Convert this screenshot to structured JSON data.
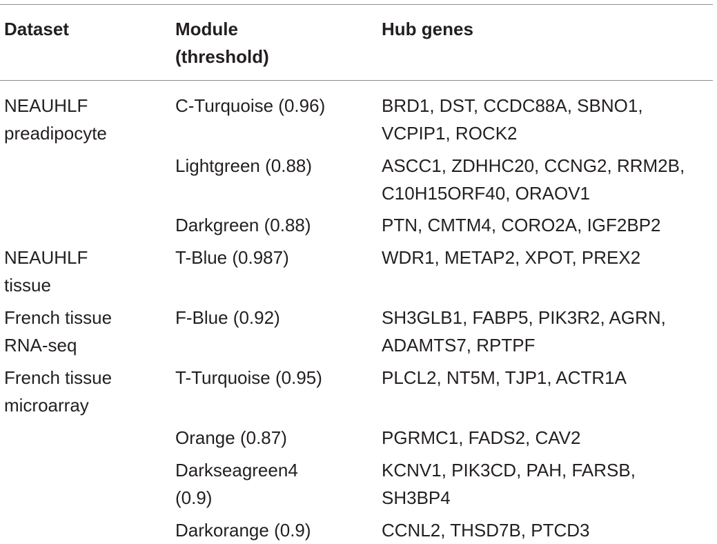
{
  "columns": {
    "dataset": "Dataset",
    "module": "Module\n(threshold)",
    "hub_genes": "Hub genes"
  },
  "rows": [
    {
      "dataset": "NEAUHLF\npreadipocyte",
      "module": "C-Turquoise (0.96)",
      "hub_genes": "BRD1, DST, CCDC88A, SBNO1,\nVCPIP1, ROCK2"
    },
    {
      "dataset": "",
      "module": "Lightgreen (0.88)",
      "hub_genes": "ASCC1, ZDHHC20, CCNG2, RRM2B,\nC10H15ORF40, ORAOV1"
    },
    {
      "dataset": "",
      "module": "Darkgreen (0.88)",
      "hub_genes": "PTN, CMTM4, CORO2A, IGF2BP2"
    },
    {
      "dataset": "NEAUHLF\ntissue",
      "module": "T-Blue (0.987)",
      "hub_genes": "WDR1, METAP2, XPOT, PREX2"
    },
    {
      "dataset": "French tissue\nRNA-seq",
      "module": "F-Blue (0.92)",
      "hub_genes": "SH3GLB1, FABP5, PIK3R2, AGRN,\nADAMTS7, RPTPF"
    },
    {
      "dataset": "French tissue\nmicroarray",
      "module": "T-Turquoise (0.95)",
      "hub_genes": "PLCL2, NT5M, TJP1, ACTR1A"
    },
    {
      "dataset": "",
      "module": "Orange (0.87)",
      "hub_genes": "PGRMC1, FADS2, CAV2"
    },
    {
      "dataset": "",
      "module": "Darkseagreen4\n(0.9)",
      "hub_genes": "KCNV1, PIK3CD, PAH, FARSB,\nSH3BP4"
    },
    {
      "dataset": "",
      "module": "Darkorange (0.9)",
      "hub_genes": "CCNL2, THSD7B, PTCD3"
    }
  ]
}
